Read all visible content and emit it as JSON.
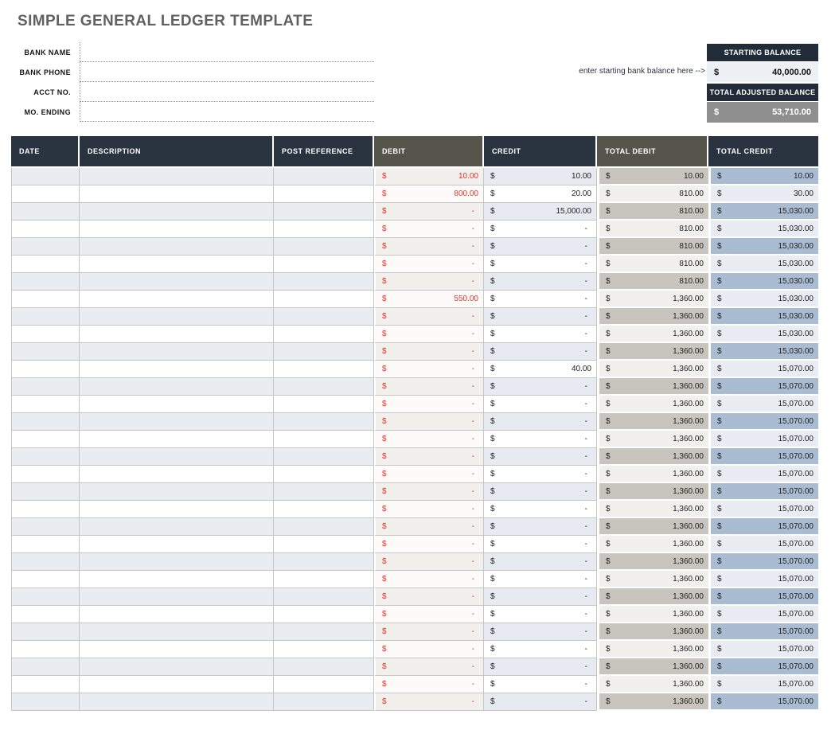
{
  "title": "SIMPLE GENERAL LEDGER TEMPLATE",
  "form": {
    "fields": [
      {
        "label": "BANK NAME",
        "value": ""
      },
      {
        "label": "BANK PHONE",
        "value": ""
      },
      {
        "label": "ACCT NO.",
        "value": ""
      },
      {
        "label": "MO. ENDING",
        "value": ""
      }
    ]
  },
  "balance": {
    "hint": "enter starting bank balance here -->",
    "starting_label": "STARTING BALANCE",
    "starting_currency": "$",
    "starting_value": "40,000.00",
    "adjusted_label": "TOTAL ADJUSTED BALANCE",
    "adjusted_currency": "$",
    "adjusted_value": "53,710.00"
  },
  "table": {
    "columns": [
      "DATE",
      "DESCRIPTION",
      "POST REFERENCE",
      "DEBIT",
      "CREDIT",
      "TOTAL DEBIT",
      "TOTAL CREDIT"
    ],
    "currency": "$",
    "rows": [
      {
        "date": "",
        "description": "",
        "post_reference": "",
        "debit": "10.00",
        "credit": "10.00",
        "total_debit": "10.00",
        "total_credit": "10.00"
      },
      {
        "date": "",
        "description": "",
        "post_reference": "",
        "debit": "800.00",
        "credit": "20.00",
        "total_debit": "810.00",
        "total_credit": "30.00"
      },
      {
        "date": "",
        "description": "",
        "post_reference": "",
        "debit": "-",
        "credit": "15,000.00",
        "total_debit": "810.00",
        "total_credit": "15,030.00"
      },
      {
        "date": "",
        "description": "",
        "post_reference": "",
        "debit": "-",
        "credit": "-",
        "total_debit": "810.00",
        "total_credit": "15,030.00"
      },
      {
        "date": "",
        "description": "",
        "post_reference": "",
        "debit": "-",
        "credit": "-",
        "total_debit": "810.00",
        "total_credit": "15,030.00"
      },
      {
        "date": "",
        "description": "",
        "post_reference": "",
        "debit": "-",
        "credit": "-",
        "total_debit": "810.00",
        "total_credit": "15,030.00"
      },
      {
        "date": "",
        "description": "",
        "post_reference": "",
        "debit": "-",
        "credit": "-",
        "total_debit": "810.00",
        "total_credit": "15,030.00"
      },
      {
        "date": "",
        "description": "",
        "post_reference": "",
        "debit": "550.00",
        "credit": "-",
        "total_debit": "1,360.00",
        "total_credit": "15,030.00"
      },
      {
        "date": "",
        "description": "",
        "post_reference": "",
        "debit": "-",
        "credit": "-",
        "total_debit": "1,360.00",
        "total_credit": "15,030.00"
      },
      {
        "date": "",
        "description": "",
        "post_reference": "",
        "debit": "-",
        "credit": "-",
        "total_debit": "1,360.00",
        "total_credit": "15,030.00"
      },
      {
        "date": "",
        "description": "",
        "post_reference": "",
        "debit": "-",
        "credit": "-",
        "total_debit": "1,360.00",
        "total_credit": "15,030.00"
      },
      {
        "date": "",
        "description": "",
        "post_reference": "",
        "debit": "-",
        "credit": "40.00",
        "total_debit": "1,360.00",
        "total_credit": "15,070.00"
      },
      {
        "date": "",
        "description": "",
        "post_reference": "",
        "debit": "-",
        "credit": "-",
        "total_debit": "1,360.00",
        "total_credit": "15,070.00"
      },
      {
        "date": "",
        "description": "",
        "post_reference": "",
        "debit": "-",
        "credit": "-",
        "total_debit": "1,360.00",
        "total_credit": "15,070.00"
      },
      {
        "date": "",
        "description": "",
        "post_reference": "",
        "debit": "-",
        "credit": "-",
        "total_debit": "1,360.00",
        "total_credit": "15,070.00"
      },
      {
        "date": "",
        "description": "",
        "post_reference": "",
        "debit": "-",
        "credit": "-",
        "total_debit": "1,360.00",
        "total_credit": "15,070.00"
      },
      {
        "date": "",
        "description": "",
        "post_reference": "",
        "debit": "-",
        "credit": "-",
        "total_debit": "1,360.00",
        "total_credit": "15,070.00"
      },
      {
        "date": "",
        "description": "",
        "post_reference": "",
        "debit": "-",
        "credit": "-",
        "total_debit": "1,360.00",
        "total_credit": "15,070.00"
      },
      {
        "date": "",
        "description": "",
        "post_reference": "",
        "debit": "-",
        "credit": "-",
        "total_debit": "1,360.00",
        "total_credit": "15,070.00"
      },
      {
        "date": "",
        "description": "",
        "post_reference": "",
        "debit": "-",
        "credit": "-",
        "total_debit": "1,360.00",
        "total_credit": "15,070.00"
      },
      {
        "date": "",
        "description": "",
        "post_reference": "",
        "debit": "-",
        "credit": "-",
        "total_debit": "1,360.00",
        "total_credit": "15,070.00"
      },
      {
        "date": "",
        "description": "",
        "post_reference": "",
        "debit": "-",
        "credit": "-",
        "total_debit": "1,360.00",
        "total_credit": "15,070.00"
      },
      {
        "date": "",
        "description": "",
        "post_reference": "",
        "debit": "-",
        "credit": "-",
        "total_debit": "1,360.00",
        "total_credit": "15,070.00"
      },
      {
        "date": "",
        "description": "",
        "post_reference": "",
        "debit": "-",
        "credit": "-",
        "total_debit": "1,360.00",
        "total_credit": "15,070.00"
      },
      {
        "date": "",
        "description": "",
        "post_reference": "",
        "debit": "-",
        "credit": "-",
        "total_debit": "1,360.00",
        "total_credit": "15,070.00"
      },
      {
        "date": "",
        "description": "",
        "post_reference": "",
        "debit": "-",
        "credit": "-",
        "total_debit": "1,360.00",
        "total_credit": "15,070.00"
      },
      {
        "date": "",
        "description": "",
        "post_reference": "",
        "debit": "-",
        "credit": "-",
        "total_debit": "1,360.00",
        "total_credit": "15,070.00"
      },
      {
        "date": "",
        "description": "",
        "post_reference": "",
        "debit": "-",
        "credit": "-",
        "total_debit": "1,360.00",
        "total_credit": "15,070.00"
      },
      {
        "date": "",
        "description": "",
        "post_reference": "",
        "debit": "-",
        "credit": "-",
        "total_debit": "1,360.00",
        "total_credit": "15,070.00"
      },
      {
        "date": "",
        "description": "",
        "post_reference": "",
        "debit": "-",
        "credit": "-",
        "total_debit": "1,360.00",
        "total_credit": "15,070.00"
      },
      {
        "date": "",
        "description": "",
        "post_reference": "",
        "debit": "-",
        "credit": "-",
        "total_debit": "1,360.00",
        "total_credit": "15,070.00"
      }
    ]
  },
  "colors": {
    "header_navy": "#2a3441",
    "header_gray": "#56554b",
    "balance_navy": "#222c39",
    "balance_gray": "#8f8f8f",
    "debit_red": "#e0342c",
    "stripe_blue": "#e9ecf1",
    "total_debit_shade": "#c8c4be",
    "total_credit_shade": "#a9bcd1"
  }
}
